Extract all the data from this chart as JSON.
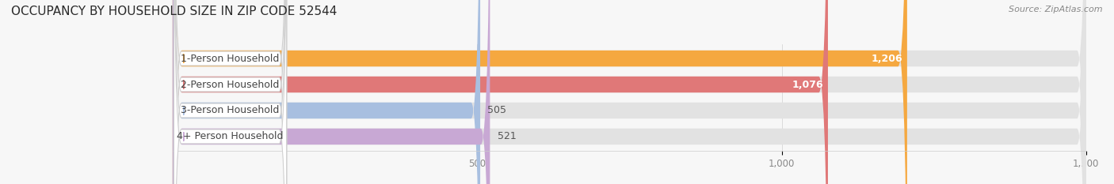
{
  "title": "OCCUPANCY BY HOUSEHOLD SIZE IN ZIP CODE 52544",
  "source": "Source: ZipAtlas.com",
  "categories": [
    "1-Person Household",
    "2-Person Household",
    "3-Person Household",
    "4+ Person Household"
  ],
  "values": [
    1206,
    1076,
    505,
    521
  ],
  "bar_colors": [
    "#F5A840",
    "#E07878",
    "#A8BFE0",
    "#C8A8D4"
  ],
  "xlim_max": 1500,
  "xticks": [
    500,
    1000,
    1500
  ],
  "background_color": "#f7f7f7",
  "bar_bg_color": "#e2e2e2",
  "title_fontsize": 11,
  "source_fontsize": 8,
  "label_fontsize": 9,
  "value_fontsize": 9
}
